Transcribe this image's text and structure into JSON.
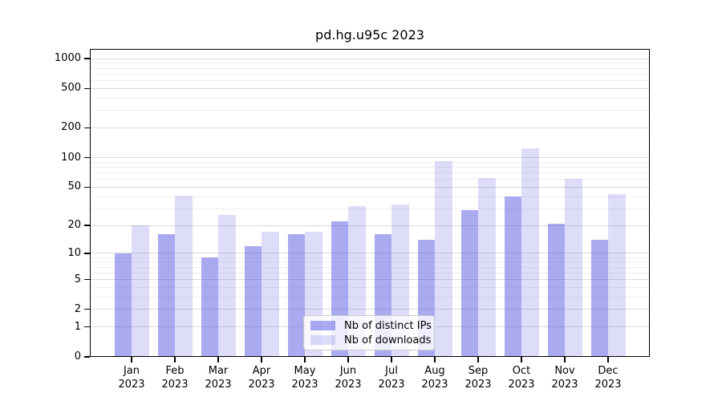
{
  "title": "pd.hg.u95c 2023",
  "chart_data": {
    "type": "bar",
    "title": "pd.hg.u95c 2023",
    "categories": [
      "Jan 2023",
      "Feb 2023",
      "Mar 2023",
      "Apr 2023",
      "May 2023",
      "Jun 2023",
      "Jul 2023",
      "Aug 2023",
      "Sep 2023",
      "Oct 2023",
      "Nov 2023",
      "Dec 2023"
    ],
    "x_months": [
      "Jan",
      "Feb",
      "Mar",
      "Apr",
      "May",
      "Jun",
      "Jul",
      "Aug",
      "Sep",
      "Oct",
      "Nov",
      "Dec"
    ],
    "x_year": "2023",
    "series": [
      {
        "name": "Nb of distinct IPs",
        "color": "rgba(100,100,230,0.55)",
        "color_hex_on_white": "#aaaaf1",
        "values": [
          10,
          16,
          9,
          12,
          16,
          22,
          16,
          14,
          29,
          40,
          21,
          14
        ]
      },
      {
        "name": "Nb of downloads",
        "color": "rgba(100,100,230,0.22)",
        "color_hex_on_white": "#dddcf9",
        "values": [
          20,
          41,
          26,
          17,
          17,
          32,
          33,
          92,
          62,
          123,
          61,
          42
        ]
      }
    ],
    "y_scale": "log1p",
    "y_ticks": [
      0,
      1,
      2,
      5,
      10,
      20,
      50,
      100,
      200,
      500,
      1000
    ],
    "ylim": [
      0,
      1250
    ],
    "grid": true,
    "grid_major_color": "#d9d9d9",
    "grid_minor_color": "#efefef",
    "legend_position": "lower center"
  }
}
